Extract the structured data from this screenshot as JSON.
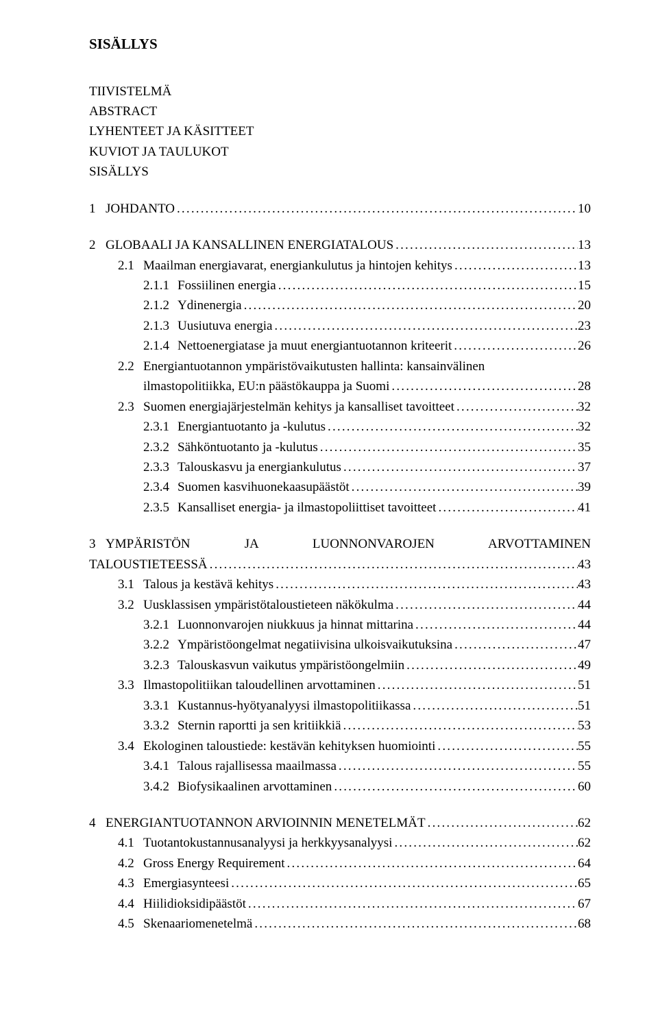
{
  "title": "SISÄLLYS",
  "front": [
    "TIIVISTELMÄ",
    "ABSTRACT",
    "LYHENTEET JA KÄSITTEET",
    "KUVIOT JA TAULUKOT",
    "SISÄLLYS"
  ],
  "toc": [
    {
      "level": 1,
      "num": "1",
      "text": "JOHDANTO",
      "page": "10"
    },
    {
      "gap": true
    },
    {
      "level": 1,
      "num": "2",
      "text": "GLOBAALI JA KANSALLINEN ENERGIATALOUS",
      "page": "13"
    },
    {
      "level": 2,
      "num": "2.1",
      "text": "Maailman energiavarat, energiankulutus ja hintojen kehitys",
      "page": "13"
    },
    {
      "level": 3,
      "num": "2.1.1",
      "text": "Fossiilinen energia",
      "page": "15"
    },
    {
      "level": 3,
      "num": "2.1.2",
      "text": "Ydinenergia",
      "page": "20"
    },
    {
      "level": 3,
      "num": "2.1.3",
      "text": "Uusiutuva energia",
      "page": "23"
    },
    {
      "level": 3,
      "num": "2.1.4",
      "text": "Nettoenergiatase ja muut energiantuotannon kriteerit",
      "page": "26"
    },
    {
      "level": 2,
      "num": "2.2",
      "text": "Energiantuotannon ympäristövaikutusten hallinta: kansainvälinen",
      "wrap": "ilmastopolitiikka, EU:n päästökauppa ja Suomi",
      "page": "28"
    },
    {
      "level": 2,
      "num": "2.3",
      "text": "Suomen energiajärjestelmän kehitys ja kansalliset tavoitteet",
      "page": "32"
    },
    {
      "level": 3,
      "num": "2.3.1",
      "text": "Energiantuotanto ja -kulutus",
      "page": "32"
    },
    {
      "level": 3,
      "num": "2.3.2",
      "text": "Sähköntuotanto ja -kulutus",
      "page": "35"
    },
    {
      "level": 3,
      "num": "2.3.3",
      "text": "Talouskasvu ja energiankulutus",
      "page": "37"
    },
    {
      "level": 3,
      "num": "2.3.4",
      "text": "Suomen kasvihuonekaasupäästöt",
      "page": "39"
    },
    {
      "level": 3,
      "num": "2.3.5",
      "text": "Kansalliset energia- ja ilmastopoliittiset tavoitteet",
      "page": "41"
    },
    {
      "gap": true
    },
    {
      "level": 1,
      "num": "3",
      "text": "YMPÄRISTÖN    JA    LUONNONVAROJEN    ARVOTTAMINEN",
      "justify": true,
      "wrapl1": "TALOUSTIETEESSÄ",
      "page": "43"
    },
    {
      "level": 2,
      "num": "3.1",
      "text": "Talous ja kestävä kehitys",
      "page": "43"
    },
    {
      "level": 2,
      "num": "3.2",
      "text": "Uusklassisen ympäristötaloustieteen näkökulma",
      "page": "44"
    },
    {
      "level": 3,
      "num": "3.2.1",
      "text": "Luonnonvarojen niukkuus ja hinnat mittarina",
      "page": "44"
    },
    {
      "level": 3,
      "num": "3.2.2",
      "text": "Ympäristöongelmat negatiivisina ulkoisvaikutuksina",
      "page": "47"
    },
    {
      "level": 3,
      "num": "3.2.3",
      "text": "Talouskasvun vaikutus ympäristöongelmiin",
      "page": "49"
    },
    {
      "level": 2,
      "num": "3.3",
      "text": "Ilmastopolitiikan taloudellinen arvottaminen",
      "page": "51"
    },
    {
      "level": 3,
      "num": "3.3.1",
      "text": "Kustannus-hyötyanalyysi ilmastopolitiikassa",
      "page": "51"
    },
    {
      "level": 3,
      "num": "3.3.2",
      "text": "Sternin raportti ja sen kritiikkiä",
      "page": "53"
    },
    {
      "level": 2,
      "num": "3.4",
      "text": "Ekologinen taloustiede: kestävän kehityksen huomiointi",
      "page": "55"
    },
    {
      "level": 3,
      "num": "3.4.1",
      "text": "Talous rajallisessa maailmassa",
      "page": "55"
    },
    {
      "level": 3,
      "num": "3.4.2",
      "text": "Biofysikaalinen arvottaminen",
      "page": "60"
    },
    {
      "gap": true
    },
    {
      "level": 1,
      "num": "4",
      "text": "ENERGIANTUOTANNON ARVIOINNIN MENETELMÄT",
      "page": "62"
    },
    {
      "level": 2,
      "num": "4.1",
      "text": "Tuotantokustannusanalyysi ja herkkyysanalyysi",
      "page": "62"
    },
    {
      "level": 2,
      "num": "4.2",
      "text": "Gross Energy Requirement",
      "page": "64"
    },
    {
      "level": 2,
      "num": "4.3",
      "text": "Emergiasynteesi",
      "page": "65"
    },
    {
      "level": 2,
      "num": "4.4",
      "text": "Hiilidioksidipäästöt",
      "page": "67"
    },
    {
      "level": 2,
      "num": "4.5",
      "text": "Skenaariomenetelmä",
      "page": "68"
    }
  ]
}
